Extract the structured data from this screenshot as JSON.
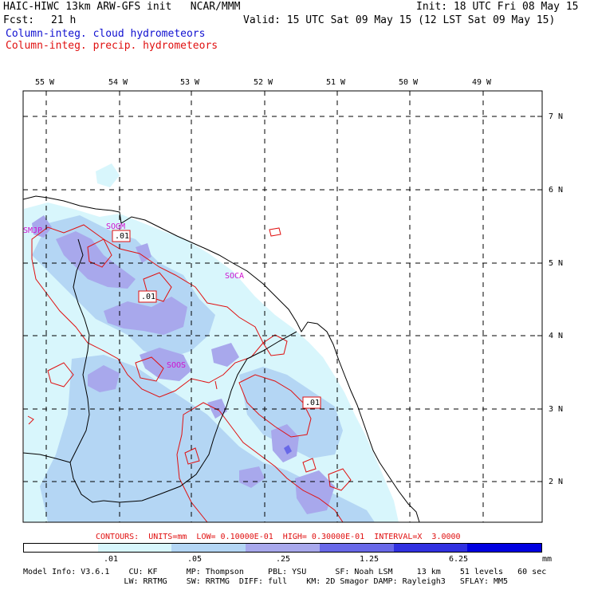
{
  "header": {
    "title_left": "HAIC-HIWC 13km ARW-GFS init   NCAR/MMM",
    "init": "Init: 18 UTC Fri 08 May 15",
    "fcst_label": "Fcst:",
    "fcst_value": "21 h",
    "valid": "Valid: 15 UTC Sat 09 May 15 (12 LST Sat 09 May 15)",
    "field_cloud": "Column-integ. cloud hydrometeors",
    "field_precip": "Column-integ. precip. hydrometeors"
  },
  "colors": {
    "cloud_text": "#1010d0",
    "precip_text": "#e01010",
    "contour": "#e01010",
    "station": "#d010d0",
    "shade_1": "#d8f6fc",
    "shade_2": "#b4d6f4",
    "shade_3": "#a8a8ec",
    "shade_4": "#6868e8",
    "shade_5": "#3030e0",
    "shade_6": "#0000e0"
  },
  "map": {
    "lon_labels": [
      "55 W",
      "54 W",
      "53 W",
      "52 W",
      "51 W",
      "50 W",
      "49 W"
    ],
    "lat_labels": [
      "7 N",
      "6 N",
      "5 N",
      "4 N",
      "3 N",
      "2 N"
    ],
    "stations": [
      "SMJP",
      "SOGM",
      "SOCA",
      "SOOS"
    ],
    "contour_labels": [
      ".01",
      ".01",
      ".01"
    ]
  },
  "legend": {
    "contour_info": "CONTOURS:  UNITS=mm  LOW= 0.10000E-01  HIGH= 0.30000E-01  INTERVAL=X  3.0000",
    "tick_labels": [
      ".01",
      ".05",
      ".25",
      "1.25",
      "6.25",
      "mm"
    ]
  },
  "footer": {
    "line1": "Model Info: V3.6.1    CU: KF      MP: Thompson     PBL: YSU      SF: Noah LSM     13 km    51 levels   60 sec",
    "line2": "                     LW: RRTMG    SW: RRTMG  DIFF: full    KM: 2D Smagor DAMP: Rayleigh3   SFLAY: MM5"
  }
}
